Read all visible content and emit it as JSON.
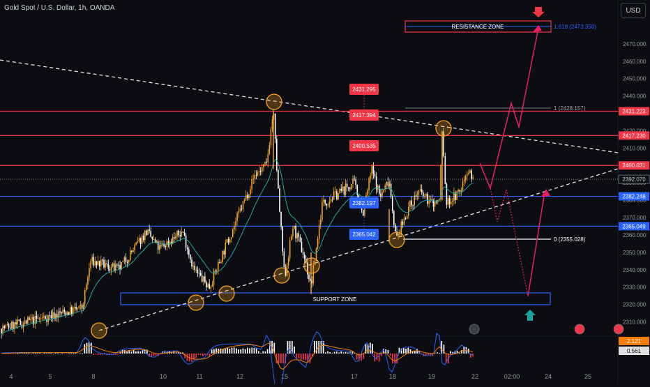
{
  "header": {
    "title": "Gold Spot / U.S. Dollar, 1h, OANDA",
    "currency": "USD"
  },
  "colors": {
    "background": "#0b0d12",
    "grid": "#1c1f28",
    "up": "#f7a21b",
    "down": "#ffffff",
    "red": "#f23645",
    "blue": "#2962ff",
    "ma": "#26a69a",
    "white": "#ffffff",
    "circle": "#f7a21b",
    "magenta": "#e91e63",
    "teal": "#00897b"
  },
  "chart_data": {
    "type": "candlestick",
    "symbol": "Gold Spot / U.S. Dollar",
    "interval": "1h",
    "exchange": "OANDA",
    "ylim": [
      2304,
      2485
    ],
    "price_ticks": [
      "2470.000",
      "2460.000",
      "2450.000",
      "2440.000",
      "2430.000",
      "2420.000",
      "2410.000",
      "2400.000",
      "2390.000",
      "2380.000",
      "2370.000",
      "2360.000",
      "2350.000",
      "2340.000",
      "2330.000",
      "2320.000",
      "2310.000"
    ],
    "x_labels": [
      "4",
      "5",
      "8",
      "10",
      "11",
      "12",
      "15",
      "17",
      "18",
      "19",
      "22",
      "02:00",
      "24",
      "25"
    ],
    "price_series": [
      [
        "4",
        2306
      ],
      [
        "8",
        2318
      ],
      [
        "8",
        2345
      ],
      [
        "10",
        2340
      ],
      [
        "10",
        2362
      ],
      [
        "11",
        2352
      ],
      [
        "11",
        2362
      ],
      [
        "12",
        2340
      ],
      [
        "12",
        2330
      ],
      [
        "12",
        2360
      ],
      [
        "12",
        2395
      ],
      [
        "15",
        2400
      ],
      [
        "15",
        2432
      ],
      [
        "15",
        2390
      ],
      [
        "15",
        2335
      ],
      [
        "15",
        2365
      ],
      [
        "15",
        2348
      ],
      [
        "15",
        2330
      ],
      [
        "17",
        2378
      ],
      [
        "17",
        2390
      ],
      [
        "17",
        2372
      ],
      [
        "17",
        2398
      ],
      [
        "17",
        2382
      ],
      [
        "18",
        2392
      ],
      [
        "18",
        2357
      ],
      [
        "18",
        2375
      ],
      [
        "18",
        2385
      ],
      [
        "19",
        2378
      ],
      [
        "19",
        2380
      ],
      [
        "19",
        2420
      ],
      [
        "19",
        2378
      ],
      [
        "19",
        2385
      ],
      [
        "22",
        2398
      ],
      [
        "22",
        2392
      ]
    ],
    "current_price": "2392.070",
    "indicator_values": [
      "2.121",
      "0.561"
    ],
    "horizontal_levels": [
      {
        "label": "2431.223",
        "price": 2431.223,
        "color": "red"
      },
      {
        "label": "2417.230",
        "price": 2417.23,
        "color": "red"
      },
      {
        "label": "2400.031",
        "price": 2400.031,
        "color": "red"
      },
      {
        "label": "2382.248",
        "price": 2382.248,
        "color": "blue"
      },
      {
        "label": "2365.049",
        "price": 2365.049,
        "color": "blue"
      }
    ],
    "callouts": [
      {
        "label": "2431.295",
        "color": "red"
      },
      {
        "label": "2417.394",
        "color": "red"
      },
      {
        "label": "2400.535",
        "color": "red"
      },
      {
        "label": "2382.197",
        "color": "blue"
      },
      {
        "label": "2365.042",
        "color": "blue"
      }
    ],
    "fibonacci": [
      {
        "label": "1.618 (2473.350)",
        "price": 2473.35
      },
      {
        "label": "1 (2428.157)",
        "price": 2428.157
      },
      {
        "label": "0 (2355.028)",
        "price": 2355.028
      }
    ],
    "zones": {
      "resistance": "RESISTANCE ZONE",
      "support": "SUPPORT ZONE"
    },
    "legend": "none",
    "grid": false
  }
}
